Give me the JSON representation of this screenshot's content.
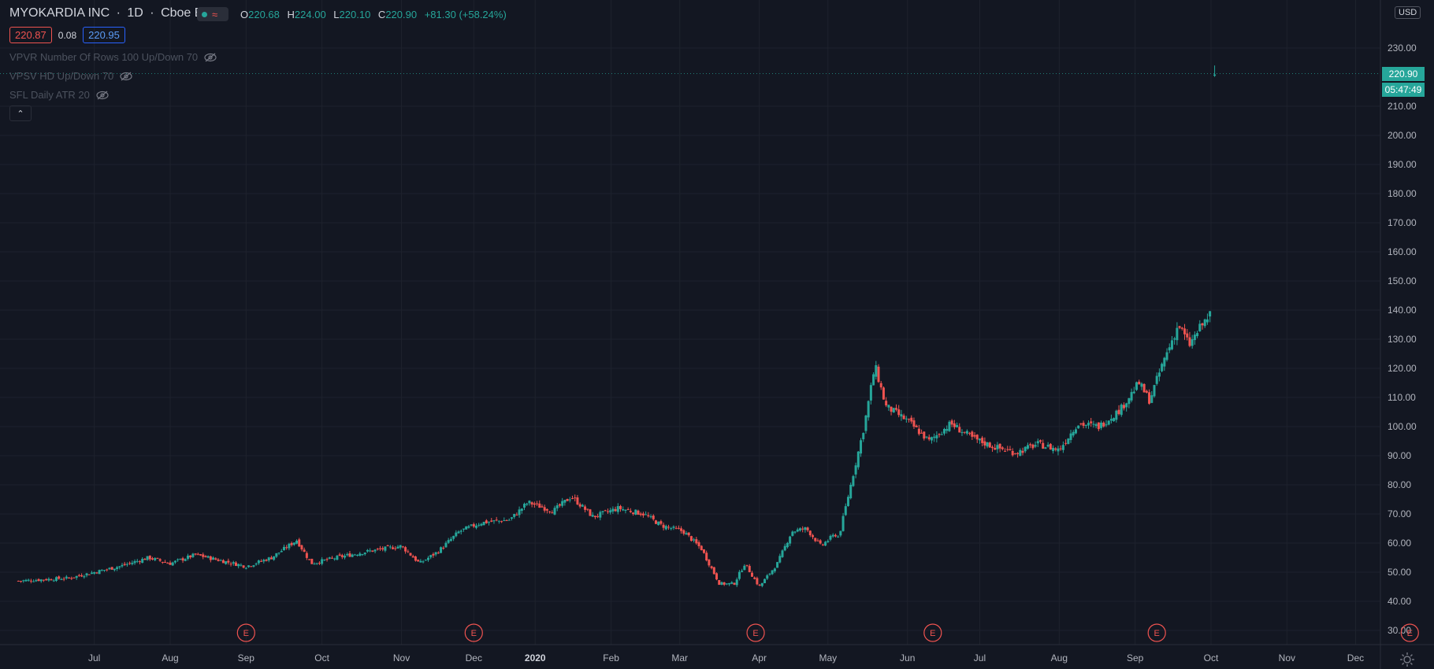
{
  "header": {
    "symbol": "MYOKARDIA INC",
    "interval": "1D",
    "exchange": "Cboe BZX",
    "ohlc": {
      "o_label": "O",
      "o": "220.68",
      "h_label": "H",
      "h": "224.00",
      "l_label": "L",
      "l": "220.10",
      "c_label": "C",
      "c": "220.90",
      "change": "+81.30 (+58.24%)"
    },
    "bid": "220.87",
    "spread": "0.08",
    "ask": "220.95"
  },
  "indicators": [
    {
      "label": "VPVR Number Of Rows 100 Up/Down 70"
    },
    {
      "label": "VPSV HD Up/Down 70"
    },
    {
      "label": "SFL Daily ATR 20"
    }
  ],
  "currency": "USD",
  "last_price_tag": "220.90",
  "countdown": "05:47:49",
  "colors": {
    "background": "#131722",
    "up": "#26a69a",
    "down": "#ef5350",
    "grid": "#1e222d",
    "axis_text": "#b2b5be"
  },
  "chart_data": {
    "type": "candlestick",
    "y_axis_ticks": [
      "30.00",
      "40.00",
      "50.00",
      "60.00",
      "70.00",
      "80.00",
      "90.00",
      "100.00",
      "110.00",
      "120.00",
      "130.00",
      "140.00",
      "150.00",
      "160.00",
      "170.00",
      "180.00",
      "190.00",
      "200.00",
      "210.00",
      "230.00"
    ],
    "ylim": [
      27,
      245
    ],
    "x_axis_labels": [
      {
        "label": "Jul",
        "x": 65
      },
      {
        "label": "Aug",
        "x": 86
      },
      {
        "label": "Sep",
        "x": 107
      },
      {
        "label": "Oct",
        "x": 128
      },
      {
        "label": "Nov",
        "x": 150
      },
      {
        "label": "Dec",
        "x": 170
      },
      {
        "label": "2020",
        "x": 187
      },
      {
        "label": "Feb",
        "x": 208
      },
      {
        "label": "Mar",
        "x": 227
      },
      {
        "label": "Apr",
        "x": 249
      },
      {
        "label": "May",
        "x": 268
      },
      {
        "label": "Jun",
        "x": 290
      },
      {
        "label": "Jul",
        "x": 310
      },
      {
        "label": "Aug",
        "x": 332
      },
      {
        "label": "Sep",
        "x": 353
      },
      {
        "label": "Oct",
        "x": 374
      },
      {
        "label": "Nov",
        "x": 395
      },
      {
        "label": "Dec",
        "x": 414
      }
    ],
    "earnings_markers": [
      {
        "label": "E",
        "x": 107
      },
      {
        "label": "E",
        "x": 170
      },
      {
        "label": "E",
        "x": 248
      },
      {
        "label": "E",
        "x": 297
      },
      {
        "label": "E",
        "x": 359
      },
      {
        "label": "E",
        "x": 429
      }
    ],
    "series": [
      {
        "day": 44,
        "close": 47
      },
      {
        "day": 58,
        "close": 48
      },
      {
        "day": 65,
        "close": 50
      },
      {
        "day": 72,
        "close": 52
      },
      {
        "day": 80,
        "close": 55
      },
      {
        "day": 86,
        "close": 53
      },
      {
        "day": 93,
        "close": 56
      },
      {
        "day": 100,
        "close": 54
      },
      {
        "day": 107,
        "close": 52
      },
      {
        "day": 114,
        "close": 55
      },
      {
        "day": 121,
        "close": 61
      },
      {
        "day": 125,
        "close": 53
      },
      {
        "day": 132,
        "close": 55
      },
      {
        "day": 140,
        "close": 57
      },
      {
        "day": 150,
        "close": 59
      },
      {
        "day": 155,
        "close": 53
      },
      {
        "day": 160,
        "close": 57
      },
      {
        "day": 166,
        "close": 64
      },
      {
        "day": 172,
        "close": 67
      },
      {
        "day": 180,
        "close": 68
      },
      {
        "day": 185,
        "close": 74
      },
      {
        "day": 192,
        "close": 71
      },
      {
        "day": 197,
        "close": 76
      },
      {
        "day": 203,
        "close": 69
      },
      {
        "day": 210,
        "close": 72
      },
      {
        "day": 217,
        "close": 70
      },
      {
        "day": 222,
        "close": 66
      },
      {
        "day": 228,
        "close": 64
      },
      {
        "day": 233,
        "close": 58
      },
      {
        "day": 238,
        "close": 46
      },
      {
        "day": 242,
        "close": 46
      },
      {
        "day": 245,
        "close": 53
      },
      {
        "day": 249,
        "close": 45
      },
      {
        "day": 254,
        "close": 53
      },
      {
        "day": 258,
        "close": 64
      },
      {
        "day": 262,
        "close": 65
      },
      {
        "day": 266,
        "close": 59
      },
      {
        "day": 270,
        "close": 63
      },
      {
        "day": 271,
        "close": 62
      },
      {
        "day": 278,
        "close": 100
      },
      {
        "day": 281,
        "close": 121
      },
      {
        "day": 284,
        "close": 107
      },
      {
        "day": 290,
        "close": 102
      },
      {
        "day": 296,
        "close": 95
      },
      {
        "day": 302,
        "close": 101
      },
      {
        "day": 308,
        "close": 96
      },
      {
        "day": 314,
        "close": 93
      },
      {
        "day": 320,
        "close": 91
      },
      {
        "day": 326,
        "close": 94
      },
      {
        "day": 332,
        "close": 92
      },
      {
        "day": 337,
        "close": 101
      },
      {
        "day": 343,
        "close": 100
      },
      {
        "day": 349,
        "close": 106
      },
      {
        "day": 354,
        "close": 115
      },
      {
        "day": 357,
        "close": 109
      },
      {
        "day": 361,
        "close": 123
      },
      {
        "day": 365,
        "close": 135
      },
      {
        "day": 368,
        "close": 128
      },
      {
        "day": 371,
        "close": 134
      },
      {
        "day": 374,
        "close": 139
      },
      {
        "day": 375,
        "close": 220.9
      }
    ]
  }
}
